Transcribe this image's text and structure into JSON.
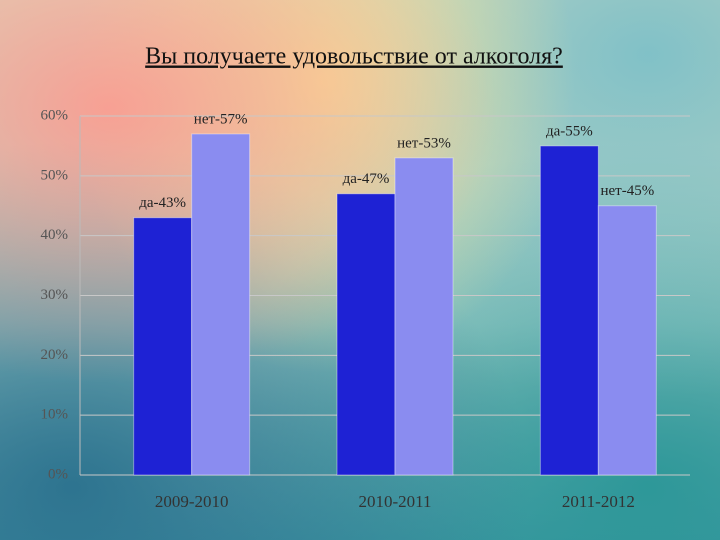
{
  "chart_data": {
    "type": "bar",
    "title": "Вы получаете удовольствие от алкоголя?",
    "categories": [
      "2009-2010",
      "2010-2011",
      "2011-2012"
    ],
    "series": [
      {
        "color": "#1e22d4",
        "values": [
          43,
          47,
          55
        ],
        "value_labels": [
          "да-43%",
          "да-47%",
          "да-55%"
        ]
      },
      {
        "color": "#8a8cf0",
        "values": [
          57,
          53,
          45
        ],
        "value_labels": [
          "нет-57%",
          "нет-53%",
          "нет-45%"
        ]
      }
    ],
    "ylim": [
      0,
      60
    ],
    "yticks": [
      {
        "value": 0,
        "label": "0%"
      },
      {
        "value": 10,
        "label": "10%"
      },
      {
        "value": 20,
        "label": "20%"
      },
      {
        "value": 30,
        "label": "30%"
      },
      {
        "value": 40,
        "label": "40%"
      },
      {
        "value": 50,
        "label": "50%"
      },
      {
        "value": 60,
        "label": "60%"
      }
    ],
    "grid": true
  }
}
